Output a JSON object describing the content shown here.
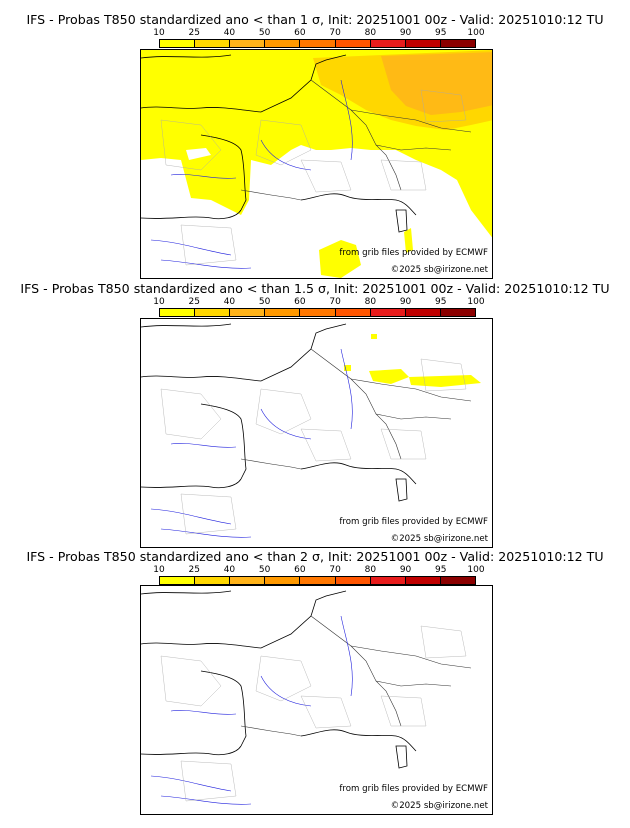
{
  "colorbar": {
    "ticks": [
      "10",
      "25",
      "40",
      "50",
      "60",
      "70",
      "80",
      "90",
      "95",
      "100"
    ],
    "colors": [
      "#ffff00",
      "#ffd700",
      "#ffb31a",
      "#ff9900",
      "#ff7700",
      "#ff5500",
      "#e81c1c",
      "#c00000",
      "#8b0000"
    ]
  },
  "panels": [
    {
      "title": "IFS - Probas T850  standardized ano < than 1 σ, Init: 20251001 00z - Valid: 20251010:12 TU",
      "level": "high"
    },
    {
      "title": "IFS - Probas T850  standardized ano < than 1.5 σ, Init: 20251001 00z - Valid: 20251010:12 TU",
      "level": "low"
    },
    {
      "title": "IFS - Probas T850  standardized ano < than 2 σ, Init: 20251001 00z - Valid: 20251010:12 TU",
      "level": "none"
    }
  ],
  "credits": {
    "source": "from grib files provided by ECMWF",
    "copyright": "©2025 sb@irizone.net"
  }
}
